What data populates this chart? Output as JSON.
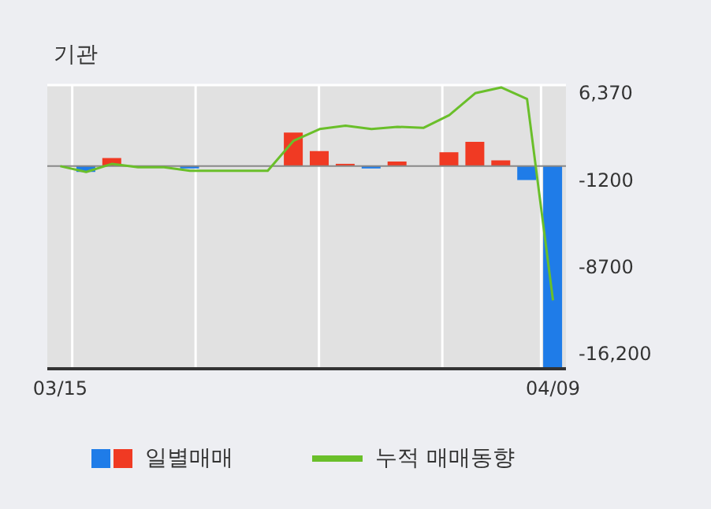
{
  "chart_data": {
    "type": "bar",
    "ylabel": "기관",
    "categories": [
      "03/15",
      null,
      null,
      null,
      null,
      null,
      null,
      null,
      null,
      null,
      null,
      null,
      null,
      null,
      null,
      null,
      null,
      null,
      null,
      "04/09"
    ],
    "series": [
      {
        "name": "일별매매",
        "values": [
          0,
          -500,
          700,
          0,
          0,
          -200,
          0,
          0,
          0,
          2900,
          1300,
          200,
          -200,
          400,
          0,
          1200,
          2100,
          500,
          -1200,
          -17400
        ],
        "colors": [
          "#f03a23",
          "#1f7ce8",
          "#f03a23",
          "#f03a23",
          "#f03a23",
          "#1f7ce8",
          "#f03a23",
          "#f03a23",
          "#f03a23",
          "#f03a23",
          "#f03a23",
          "#f03a23",
          "#1f7ce8",
          "#f03a23",
          "#f03a23",
          "#f03a23",
          "#f03a23",
          "#f03a23",
          "#1f7ce8",
          "#1f7ce8"
        ]
      },
      {
        "name": "누적 매매동향",
        "type": "line",
        "color": "#6abf2a",
        "values": [
          0,
          -500,
          200,
          -100,
          -100,
          -400,
          -400,
          -400,
          -400,
          2200,
          3200,
          3500,
          3200,
          3400,
          3300,
          4400,
          6300,
          6800,
          5800,
          -11600
        ]
      }
    ],
    "ylim": [
      -17500,
      7000
    ],
    "yticks": [
      {
        "value": 6370,
        "label": "6,370"
      },
      {
        "value": -1200,
        "label": "-1200"
      },
      {
        "value": -8700,
        "label": "-8700"
      },
      {
        "value": -16200,
        "label": "-16,200"
      }
    ],
    "ref_lines": [
      {
        "axis": "y",
        "value": 0,
        "color": "#888888"
      }
    ],
    "grid": true,
    "legend": "bottom",
    "marker": "none"
  }
}
